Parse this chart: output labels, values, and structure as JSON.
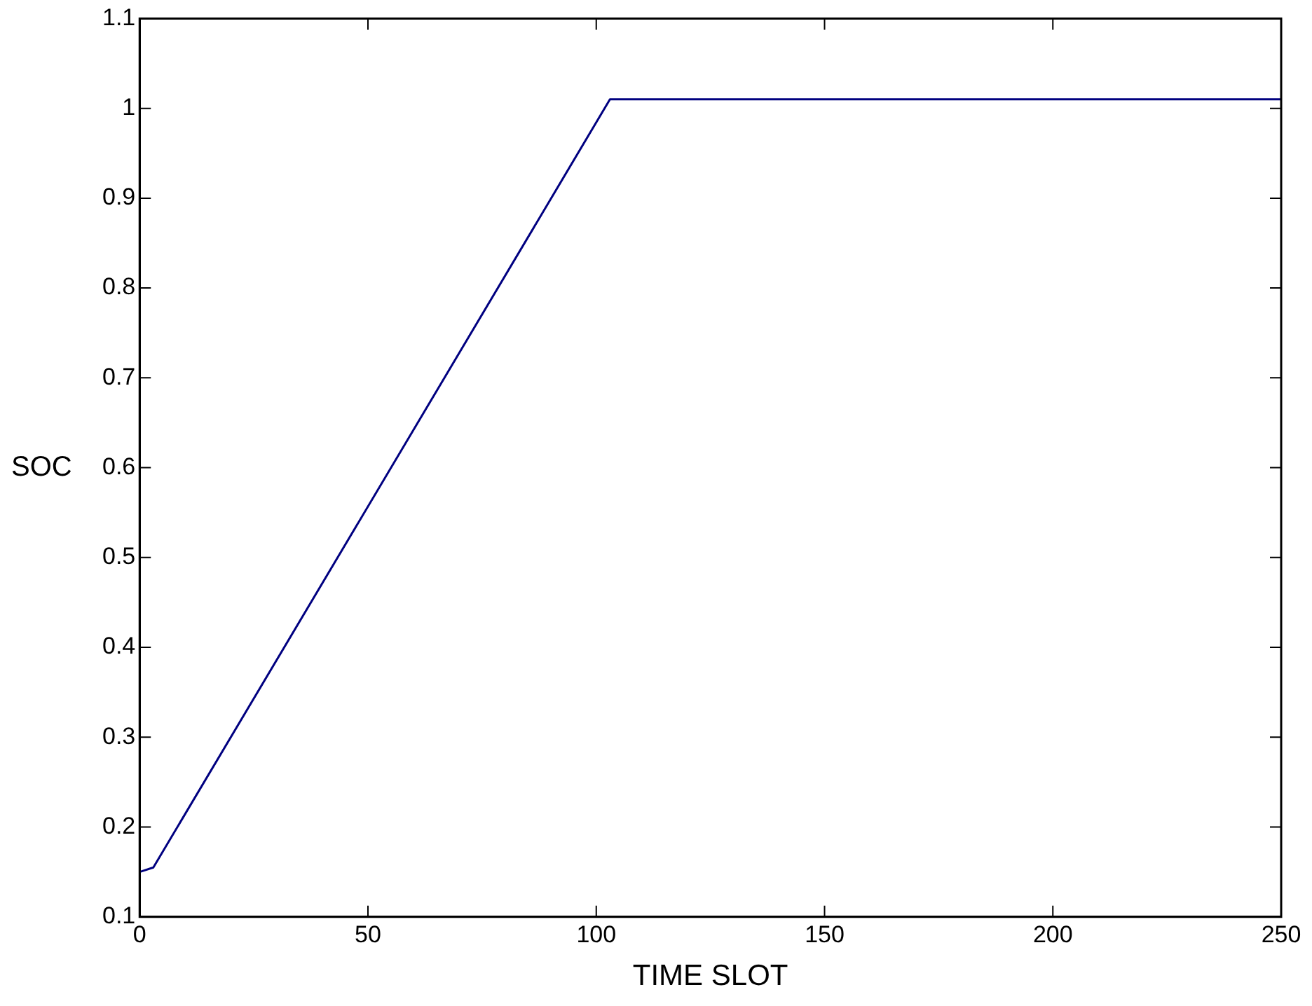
{
  "chart_data": {
    "type": "line",
    "xlabel": "TIME SLOT",
    "ylabel": "SOC",
    "series": [
      {
        "color": "#000080",
        "x": [
          0,
          3,
          103,
          250
        ],
        "values": [
          0.15,
          0.155,
          1.01,
          1.01
        ]
      }
    ],
    "xlim": [
      0,
      250
    ],
    "xticks": [
      0,
      50,
      100,
      150,
      200,
      250
    ],
    "ylim": [
      0.1,
      1.1
    ],
    "yticks": [
      0.1,
      0.2,
      0.3,
      0.4,
      0.5,
      0.6,
      0.7,
      0.8,
      0.9,
      1,
      1.1
    ],
    "grid": false,
    "legend": false,
    "marker": "none",
    "line_style": "solid"
  }
}
